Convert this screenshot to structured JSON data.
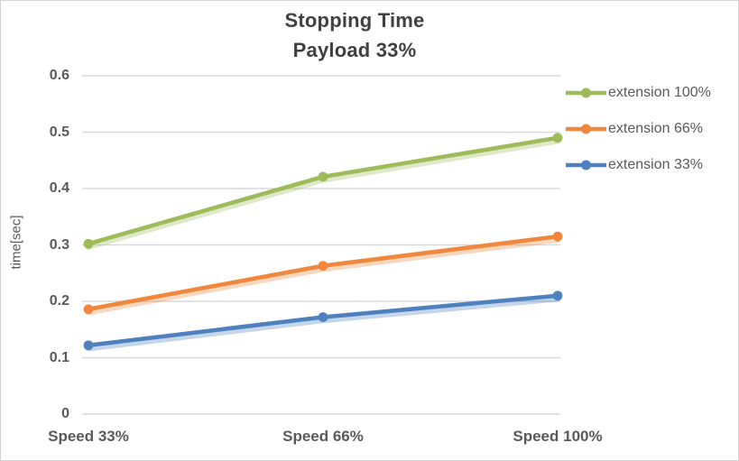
{
  "chart_data": {
    "type": "line",
    "title": "Stopping Time",
    "subtitle": "Payload 33%",
    "categories": [
      "Speed 33%",
      "Speed 66%",
      "Speed 100%"
    ],
    "series": [
      {
        "name": "extension 100%",
        "color": "#9CBB59",
        "values": [
          0.302,
          0.421,
          0.49
        ]
      },
      {
        "name": "extension 66%",
        "color": "#F0873C",
        "values": [
          0.186,
          0.263,
          0.315
        ]
      },
      {
        "name": "extension 33%",
        "color": "#4E81BD",
        "values": [
          0.122,
          0.172,
          0.21
        ]
      }
    ],
    "xlabel": "",
    "ylabel": "time[sec]",
    "ylim": [
      0,
      0.6
    ],
    "yticks": [
      0,
      0.1,
      0.2,
      0.3,
      0.4,
      0.5,
      0.6
    ],
    "ytick_labels": [
      "0",
      "0.1",
      "0.2",
      "0.3",
      "0.4",
      "0.5",
      "0.6"
    ],
    "grid": true,
    "legend_position": "right",
    "colors": {
      "title_text": "#404040",
      "axis_text": "#595959",
      "gridline": "#D9D9D9",
      "border": "#D2D2D2",
      "background": "#FFFFFF"
    }
  }
}
